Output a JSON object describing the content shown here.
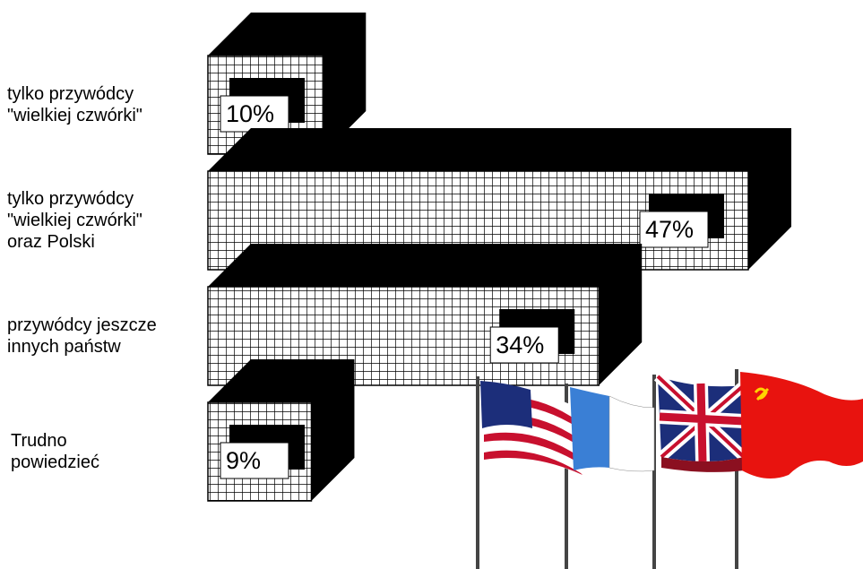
{
  "chart_data": {
    "type": "bar3d",
    "categories": [
      "tylko przywódcy\n\"wielkiej czwórki\"",
      "tylko przywódcy\n\"wielkiej czwórki\"\noraz Polski",
      "przywódcy jeszcze\ninnych państw",
      "Trudno\npowiedzieć"
    ],
    "values": [
      10,
      47,
      34,
      9
    ],
    "value_labels": [
      "10%",
      "47%",
      "34%",
      "9%"
    ]
  }
}
